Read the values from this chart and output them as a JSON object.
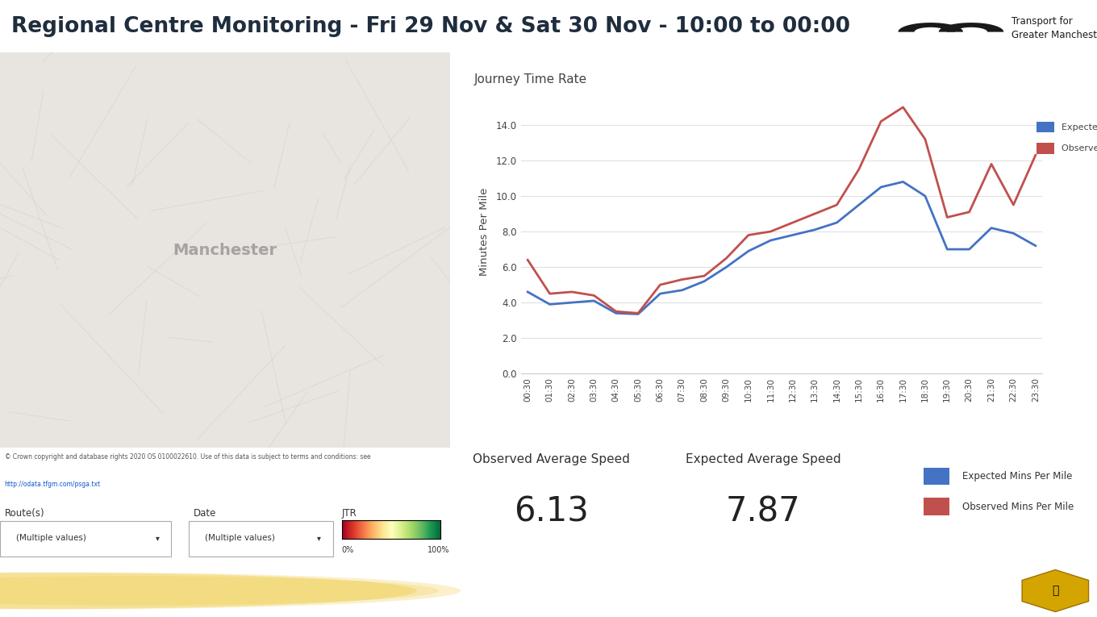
{
  "title": "Regional Centre Monitoring - Fri 29 Nov & Sat 30 Nov - 10:00 to 00:00",
  "chart_title": "Journey Time Rate",
  "ylabel": "Minutes Per Mile",
  "ylim": [
    0,
    16
  ],
  "yticks": [
    0.0,
    2.0,
    4.0,
    6.0,
    8.0,
    10.0,
    12.0,
    14.0
  ],
  "x_labels": [
    "00:30",
    "01:30",
    "02:30",
    "03:30",
    "04:30",
    "05:30",
    "06:30",
    "07:30",
    "08:30",
    "09:30",
    "10:30",
    "11:30",
    "12:30",
    "13:30",
    "14:30",
    "15:30",
    "16:30",
    "17:30",
    "18:30",
    "19:30",
    "20:30",
    "21:30",
    "22:30",
    "23:30"
  ],
  "expected_values": [
    4.6,
    3.9,
    4.0,
    4.1,
    3.4,
    3.35,
    4.5,
    4.7,
    5.2,
    6.0,
    6.9,
    7.5,
    7.8,
    8.1,
    8.5,
    9.5,
    10.5,
    10.8,
    10.0,
    7.0,
    7.0,
    8.2,
    7.9,
    7.2
  ],
  "observed_values": [
    6.4,
    4.5,
    4.6,
    4.4,
    3.5,
    3.4,
    5.0,
    5.3,
    5.5,
    6.5,
    7.8,
    8.0,
    8.5,
    9.0,
    9.5,
    11.5,
    14.2,
    15.0,
    13.2,
    8.8,
    9.1,
    11.8,
    9.5,
    12.3
  ],
  "expected_color": "#4472C4",
  "observed_color": "#C0504D",
  "observed_avg_speed": "6.13",
  "expected_avg_speed": "7.87",
  "legend_expected": "Expected Mins Per Mile",
  "legend_observed": "Observed Mins Per Mile",
  "bg_color": "#FFFFFF",
  "chart_bg_color": "#FFFFFF",
  "grid_color": "#E0E0E0",
  "title_color": "#1F2D3D",
  "banner_color": "#F5C800",
  "label_observed": "Observed Average Speed",
  "label_expected": "Expected Average Speed",
  "routes_label": "Route(s)",
  "date_label": "Date",
  "jtr_label": "JTR",
  "dropdown_text": "(Multiple values)",
  "copyright_text": "© Crown copyright and database rights 2020 OS 0100022610. Use of this data is subject to terms and conditions: see",
  "copyright_link": "http://odata.tfgm.com/psga.txt",
  "tfgm_text": "Transport for\nGreater Manchester"
}
